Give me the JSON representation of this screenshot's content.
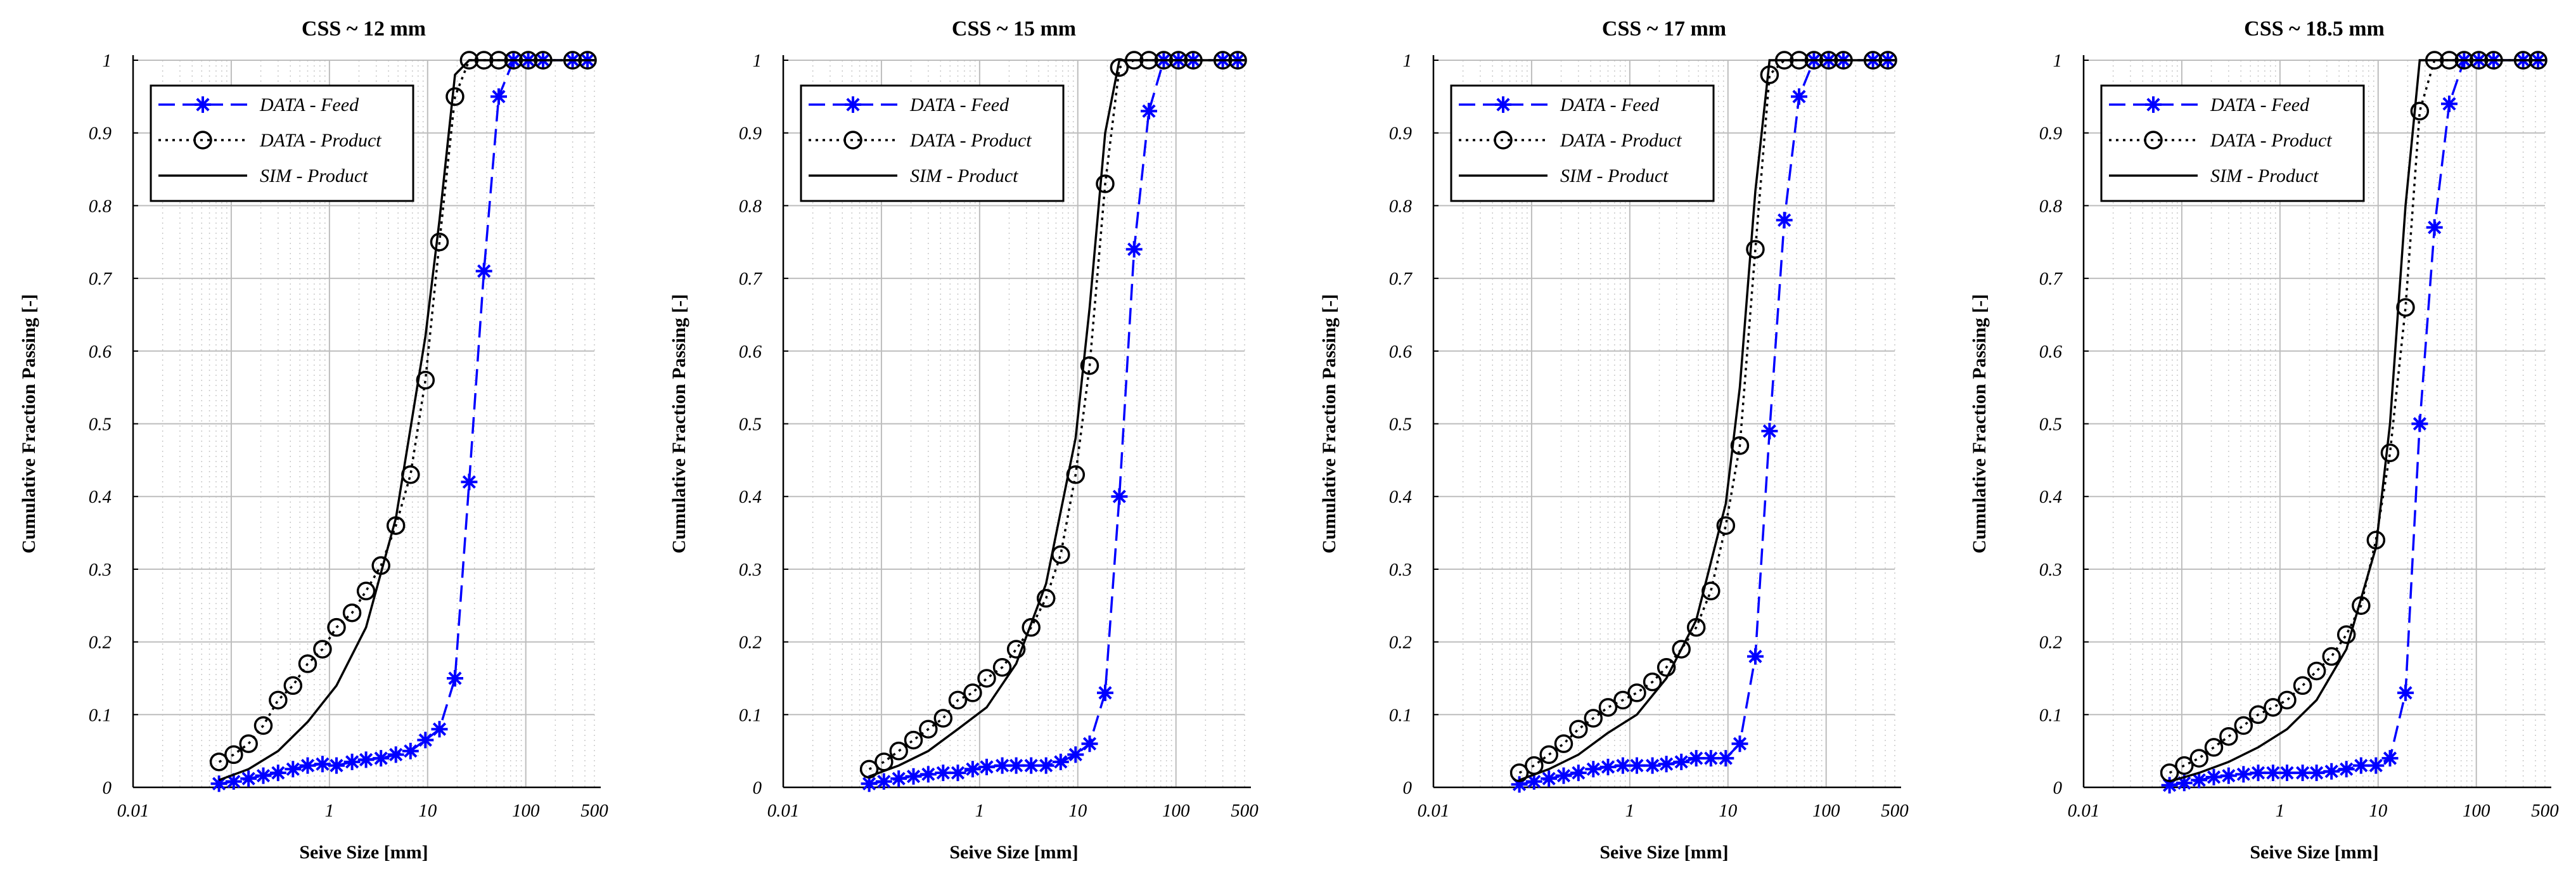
{
  "chart_data": [
    {
      "type": "line",
      "title": "CSS ~ 12 mm",
      "xlabel": "Seive Size [mm]",
      "ylabel": "Cumulative Fraction Passing [-]",
      "xscale": "log",
      "xlim": [
        0.01,
        500
      ],
      "ylim": [
        0,
        1
      ],
      "xticks": [
        "0.01",
        "1",
        "10",
        "100",
        "500"
      ],
      "yticks": [
        "0",
        "0.1",
        "0.2",
        "0.3",
        "0.4",
        "0.5",
        "0.6",
        "0.7",
        "0.8",
        "0.9",
        "1"
      ],
      "grid": true,
      "legend_position": "top-left",
      "series": [
        {
          "name": "DATA - Feed",
          "style": "dashed",
          "marker": "asterisk",
          "color": "#0000ff",
          "x": [
            0.075,
            0.106,
            0.15,
            0.212,
            0.3,
            0.425,
            0.6,
            0.85,
            1.18,
            1.7,
            2.36,
            3.35,
            4.75,
            6.7,
            9.5,
            13.2,
            19,
            26.5,
            37.5,
            53,
            75,
            106,
            150,
            300,
            425
          ],
          "y": [
            0.005,
            0.008,
            0.012,
            0.016,
            0.02,
            0.025,
            0.03,
            0.032,
            0.03,
            0.035,
            0.038,
            0.04,
            0.045,
            0.05,
            0.065,
            0.08,
            0.15,
            0.42,
            0.71,
            0.95,
            1.0,
            1.0,
            1.0,
            1.0,
            1.0
          ]
        },
        {
          "name": "DATA - Product",
          "style": "dotted",
          "marker": "circle",
          "color": "#000000",
          "x": [
            0.075,
            0.106,
            0.15,
            0.212,
            0.3,
            0.425,
            0.6,
            0.85,
            1.18,
            1.7,
            2.36,
            3.35,
            4.75,
            6.7,
            9.5,
            13.2,
            19,
            26.5,
            37.5,
            53,
            75,
            106,
            150,
            300,
            425
          ],
          "y": [
            0.035,
            0.045,
            0.06,
            0.085,
            0.12,
            0.14,
            0.17,
            0.19,
            0.22,
            0.24,
            0.27,
            0.305,
            0.36,
            0.43,
            0.56,
            0.75,
            0.95,
            1.0,
            1.0,
            1.0,
            1.0,
            1.0,
            1.0,
            1.0,
            1.0
          ]
        },
        {
          "name": "SIM - Product",
          "style": "solid",
          "marker": "none",
          "color": "#000000",
          "x": [
            0.075,
            0.15,
            0.3,
            0.6,
            1.18,
            2.36,
            4.75,
            9.5,
            13.2,
            19,
            26.5,
            37.5,
            500
          ],
          "y": [
            0.01,
            0.025,
            0.05,
            0.09,
            0.14,
            0.22,
            0.37,
            0.62,
            0.78,
            0.98,
            1.0,
            1.0,
            1.0
          ]
        }
      ]
    },
    {
      "type": "line",
      "title": "CSS ~ 15 mm",
      "xlabel": "Seive Size [mm]",
      "ylabel": "Cumulative Fraction Passing [-]",
      "xscale": "log",
      "xlim": [
        0.01,
        500
      ],
      "ylim": [
        0,
        1
      ],
      "xticks": [
        "0.01",
        "1",
        "10",
        "100",
        "500"
      ],
      "yticks": [
        "0",
        "0.1",
        "0.2",
        "0.3",
        "0.4",
        "0.5",
        "0.6",
        "0.7",
        "0.8",
        "0.9",
        "1"
      ],
      "grid": true,
      "legend_position": "top-left",
      "series": [
        {
          "name": "DATA - Feed",
          "style": "dashed",
          "marker": "asterisk",
          "color": "#0000ff",
          "x": [
            0.075,
            0.106,
            0.15,
            0.212,
            0.3,
            0.425,
            0.6,
            0.85,
            1.18,
            1.7,
            2.36,
            3.35,
            4.75,
            6.7,
            9.5,
            13.2,
            19,
            26.5,
            37.5,
            53,
            75,
            106,
            150,
            300,
            425
          ],
          "y": [
            0.005,
            0.008,
            0.012,
            0.015,
            0.018,
            0.02,
            0.02,
            0.025,
            0.028,
            0.03,
            0.03,
            0.03,
            0.03,
            0.035,
            0.045,
            0.06,
            0.13,
            0.4,
            0.74,
            0.93,
            1.0,
            1.0,
            1.0,
            1.0,
            1.0
          ]
        },
        {
          "name": "DATA - Product",
          "style": "dotted",
          "marker": "circle",
          "color": "#000000",
          "x": [
            0.075,
            0.106,
            0.15,
            0.212,
            0.3,
            0.425,
            0.6,
            0.85,
            1.18,
            1.7,
            2.36,
            3.35,
            4.75,
            6.7,
            9.5,
            13.2,
            19,
            26.5,
            37.5,
            53,
            75,
            106,
            150,
            300,
            425
          ],
          "y": [
            0.025,
            0.035,
            0.05,
            0.065,
            0.08,
            0.095,
            0.12,
            0.13,
            0.15,
            0.165,
            0.19,
            0.22,
            0.26,
            0.32,
            0.43,
            0.58,
            0.83,
            0.99,
            1.0,
            1.0,
            1.0,
            1.0,
            1.0,
            1.0,
            1.0
          ]
        },
        {
          "name": "SIM - Product",
          "style": "solid",
          "marker": "none",
          "color": "#000000",
          "x": [
            0.075,
            0.15,
            0.3,
            0.6,
            1.18,
            2.36,
            4.75,
            9.5,
            13.2,
            19,
            26.5,
            37.5,
            500
          ],
          "y": [
            0.015,
            0.03,
            0.05,
            0.08,
            0.11,
            0.17,
            0.28,
            0.48,
            0.66,
            0.9,
            1.0,
            1.0,
            1.0
          ]
        }
      ]
    },
    {
      "type": "line",
      "title": "CSS ~ 17 mm",
      "xlabel": "Seive Size [mm]",
      "ylabel": "Cumulative Fraction Passing [-]",
      "xscale": "log",
      "xlim": [
        0.01,
        500
      ],
      "ylim": [
        0,
        1
      ],
      "xticks": [
        "0.01",
        "1",
        "10",
        "100",
        "500"
      ],
      "yticks": [
        "0",
        "0.1",
        "0.2",
        "0.3",
        "0.4",
        "0.5",
        "0.6",
        "0.7",
        "0.8",
        "0.9",
        "1"
      ],
      "grid": true,
      "legend_position": "top-left",
      "series": [
        {
          "name": "DATA - Feed",
          "style": "dashed",
          "marker": "asterisk",
          "color": "#0000ff",
          "x": [
            0.075,
            0.106,
            0.15,
            0.212,
            0.3,
            0.425,
            0.6,
            0.85,
            1.18,
            1.7,
            2.36,
            3.35,
            4.75,
            6.7,
            9.5,
            13.2,
            19,
            26.5,
            37.5,
            53,
            75,
            106,
            150,
            300,
            425
          ],
          "y": [
            0.004,
            0.008,
            0.012,
            0.016,
            0.02,
            0.025,
            0.028,
            0.03,
            0.03,
            0.03,
            0.032,
            0.035,
            0.04,
            0.04,
            0.04,
            0.06,
            0.18,
            0.49,
            0.78,
            0.95,
            1.0,
            1.0,
            1.0,
            1.0,
            1.0
          ]
        },
        {
          "name": "DATA - Product",
          "style": "dotted",
          "marker": "circle",
          "color": "#000000",
          "x": [
            0.075,
            0.106,
            0.15,
            0.212,
            0.3,
            0.425,
            0.6,
            0.85,
            1.18,
            1.7,
            2.36,
            3.35,
            4.75,
            6.7,
            9.5,
            13.2,
            19,
            26.5,
            37.5,
            53,
            75,
            106,
            150,
            300,
            425
          ],
          "y": [
            0.02,
            0.03,
            0.045,
            0.06,
            0.08,
            0.095,
            0.11,
            0.12,
            0.13,
            0.145,
            0.165,
            0.19,
            0.22,
            0.27,
            0.36,
            0.47,
            0.74,
            0.98,
            1.0,
            1.0,
            1.0,
            1.0,
            1.0,
            1.0,
            1.0
          ]
        },
        {
          "name": "SIM - Product",
          "style": "solid",
          "marker": "none",
          "color": "#000000",
          "x": [
            0.075,
            0.15,
            0.3,
            0.6,
            1.18,
            2.36,
            4.75,
            9.5,
            13.2,
            19,
            26.5,
            37.5,
            500
          ],
          "y": [
            0.01,
            0.025,
            0.045,
            0.075,
            0.1,
            0.15,
            0.23,
            0.39,
            0.55,
            0.82,
            1.0,
            1.0,
            1.0
          ]
        }
      ]
    },
    {
      "type": "line",
      "title": "CSS ~ 18.5 mm",
      "xlabel": "Seive Size [mm]",
      "ylabel": "Cumulative Fraction Passing [-]",
      "xscale": "log",
      "xlim": [
        0.01,
        500
      ],
      "ylim": [
        0,
        1
      ],
      "xticks": [
        "0.01",
        "1",
        "10",
        "100",
        "500"
      ],
      "yticks": [
        "0",
        "0.1",
        "0.2",
        "0.3",
        "0.4",
        "0.5",
        "0.6",
        "0.7",
        "0.8",
        "0.9",
        "1"
      ],
      "grid": true,
      "legend_position": "top-left",
      "series": [
        {
          "name": "DATA - Feed",
          "style": "dashed",
          "marker": "asterisk",
          "color": "#0000ff",
          "x": [
            0.075,
            0.106,
            0.15,
            0.212,
            0.3,
            0.425,
            0.6,
            0.85,
            1.18,
            1.7,
            2.36,
            3.35,
            4.75,
            6.7,
            9.5,
            13.2,
            19,
            26.5,
            37.5,
            53,
            75,
            106,
            150,
            300,
            425
          ],
          "y": [
            0.003,
            0.006,
            0.01,
            0.014,
            0.016,
            0.018,
            0.02,
            0.02,
            0.02,
            0.02,
            0.02,
            0.022,
            0.025,
            0.03,
            0.03,
            0.04,
            0.13,
            0.5,
            0.77,
            0.94,
            1.0,
            1.0,
            1.0,
            1.0,
            1.0
          ]
        },
        {
          "name": "DATA - Product",
          "style": "dotted",
          "marker": "circle",
          "color": "#000000",
          "x": [
            0.075,
            0.106,
            0.15,
            0.212,
            0.3,
            0.425,
            0.6,
            0.85,
            1.18,
            1.7,
            2.36,
            3.35,
            4.75,
            6.7,
            9.5,
            13.2,
            19,
            26.5,
            37.5,
            53,
            75,
            106,
            150,
            300,
            425
          ],
          "y": [
            0.02,
            0.03,
            0.04,
            0.055,
            0.07,
            0.085,
            0.1,
            0.11,
            0.12,
            0.14,
            0.16,
            0.18,
            0.21,
            0.25,
            0.34,
            0.46,
            0.66,
            0.93,
            1.0,
            1.0,
            1.0,
            1.0,
            1.0,
            1.0,
            1.0
          ]
        },
        {
          "name": "SIM - Product",
          "style": "solid",
          "marker": "none",
          "color": "#000000",
          "x": [
            0.075,
            0.15,
            0.3,
            0.6,
            1.18,
            2.36,
            4.75,
            9.5,
            13.2,
            19,
            26.5,
            37.5,
            500
          ],
          "y": [
            0.008,
            0.02,
            0.035,
            0.055,
            0.08,
            0.12,
            0.19,
            0.33,
            0.5,
            0.8,
            1.0,
            1.0,
            1.0
          ]
        }
      ]
    }
  ]
}
